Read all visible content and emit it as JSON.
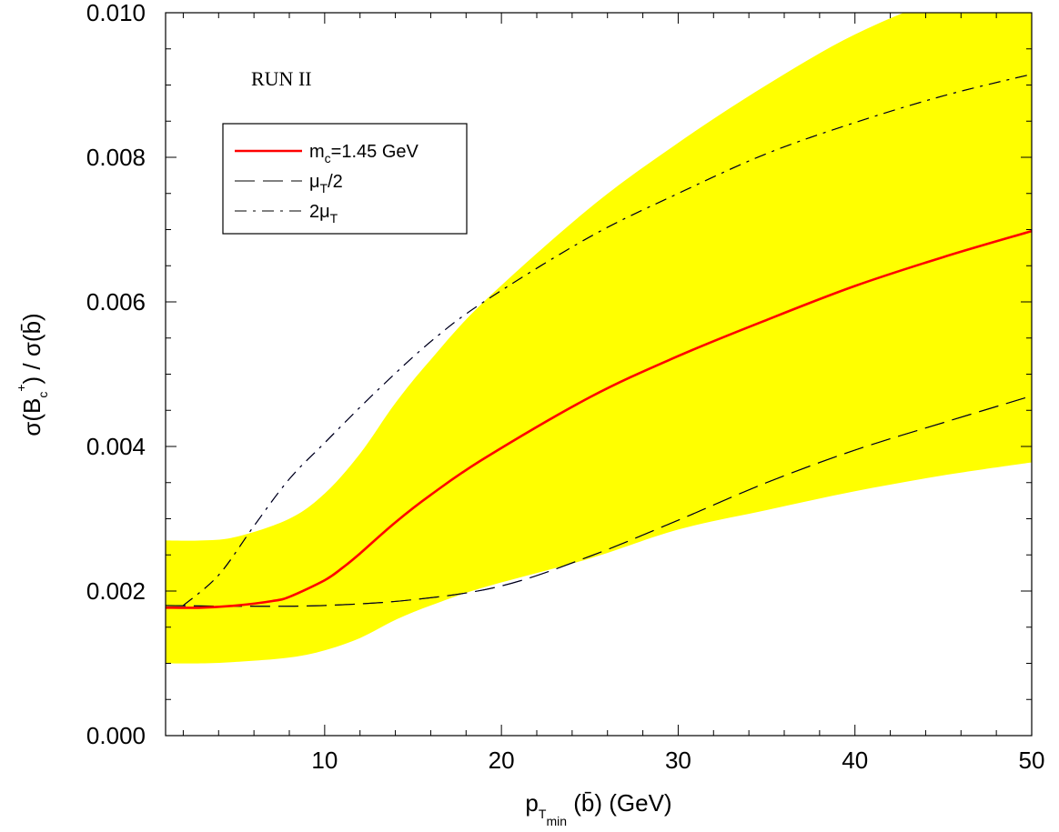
{
  "chart_data": {
    "type": "line",
    "xlabel": {
      "main": "p",
      "sub1": "T",
      "sub2": "min",
      "rest": " (b̄)   (GeV)"
    },
    "ylabel": {
      "pre": "σ(B",
      "sub": "c",
      "sup": "+",
      "post": ") / σ(b̄)"
    },
    "xlim": [
      1,
      50
    ],
    "ylim": [
      0.0,
      0.01
    ],
    "xticks": [
      10,
      20,
      30,
      40,
      50
    ],
    "xtick_labels": [
      "10",
      "20",
      "30",
      "40",
      "50"
    ],
    "yticks": [
      0.0,
      0.002,
      0.004,
      0.006,
      0.008,
      0.01
    ],
    "ytick_labels": [
      "0.000",
      "0.002",
      "0.004",
      "0.006",
      "0.008",
      "0.010"
    ],
    "annotation": "RUN II",
    "legend_position": "upper-left",
    "grid": false,
    "colors": {
      "band": "#ffff00",
      "central": "#ff0000",
      "scale": "#000000",
      "scale_blue": "#0000ff"
    },
    "legend": [
      {
        "pre": "m",
        "sub": "c",
        "post": "=1.45 GeV",
        "style": "solid"
      },
      {
        "pre": "μ",
        "sub": "T",
        "post": "/2",
        "style": "dashed"
      },
      {
        "pre": "2μ",
        "sub": "T",
        "post": "",
        "style": "dashdot"
      }
    ],
    "band": {
      "x": [
        1,
        3,
        5,
        8,
        10,
        12,
        14,
        16,
        19,
        25,
        30,
        35,
        40,
        45,
        50
      ],
      "upper": [
        0.0027,
        0.0027,
        0.00275,
        0.003,
        0.00335,
        0.0039,
        0.0046,
        0.0052,
        0.006,
        0.0073,
        0.0082,
        0.009,
        0.0097,
        0.0102,
        0.0105
      ],
      "lower": [
        0.001,
        0.001,
        0.00102,
        0.00108,
        0.00118,
        0.00135,
        0.0016,
        0.0018,
        0.00205,
        0.00245,
        0.00285,
        0.00312,
        0.00338,
        0.0036,
        0.00378
      ]
    },
    "series": [
      {
        "name": "m_c=1.45 GeV",
        "style": "solid",
        "x": [
          1,
          3,
          5,
          7,
          8,
          10,
          11,
          12,
          14,
          16,
          19,
          25,
          30,
          35,
          40,
          45,
          50
        ],
        "y": [
          0.00177,
          0.00177,
          0.0018,
          0.00186,
          0.00192,
          0.00215,
          0.00232,
          0.00252,
          0.00295,
          0.00333,
          0.00383,
          0.00468,
          0.00525,
          0.00575,
          0.00622,
          0.00662,
          0.00698
        ]
      },
      {
        "name": "μ_T/2",
        "style": "dashed",
        "x": [
          1,
          5,
          10,
          15,
          20,
          25,
          30,
          35,
          40,
          45,
          50
        ],
        "y": [
          0.0018,
          0.00179,
          0.0018,
          0.00188,
          0.00207,
          0.00248,
          0.00298,
          0.0035,
          0.00395,
          0.00433,
          0.0047
        ]
      },
      {
        "name": "2μ_T",
        "style": "dashdot",
        "x": [
          2,
          4,
          6,
          8,
          10,
          13,
          16,
          19,
          25,
          30,
          35,
          40,
          45,
          50
        ],
        "y": [
          0.0018,
          0.00222,
          0.0029,
          0.00355,
          0.00405,
          0.00478,
          0.00545,
          0.006,
          0.0069,
          0.0075,
          0.00805,
          0.00848,
          0.00885,
          0.00915
        ]
      }
    ]
  }
}
